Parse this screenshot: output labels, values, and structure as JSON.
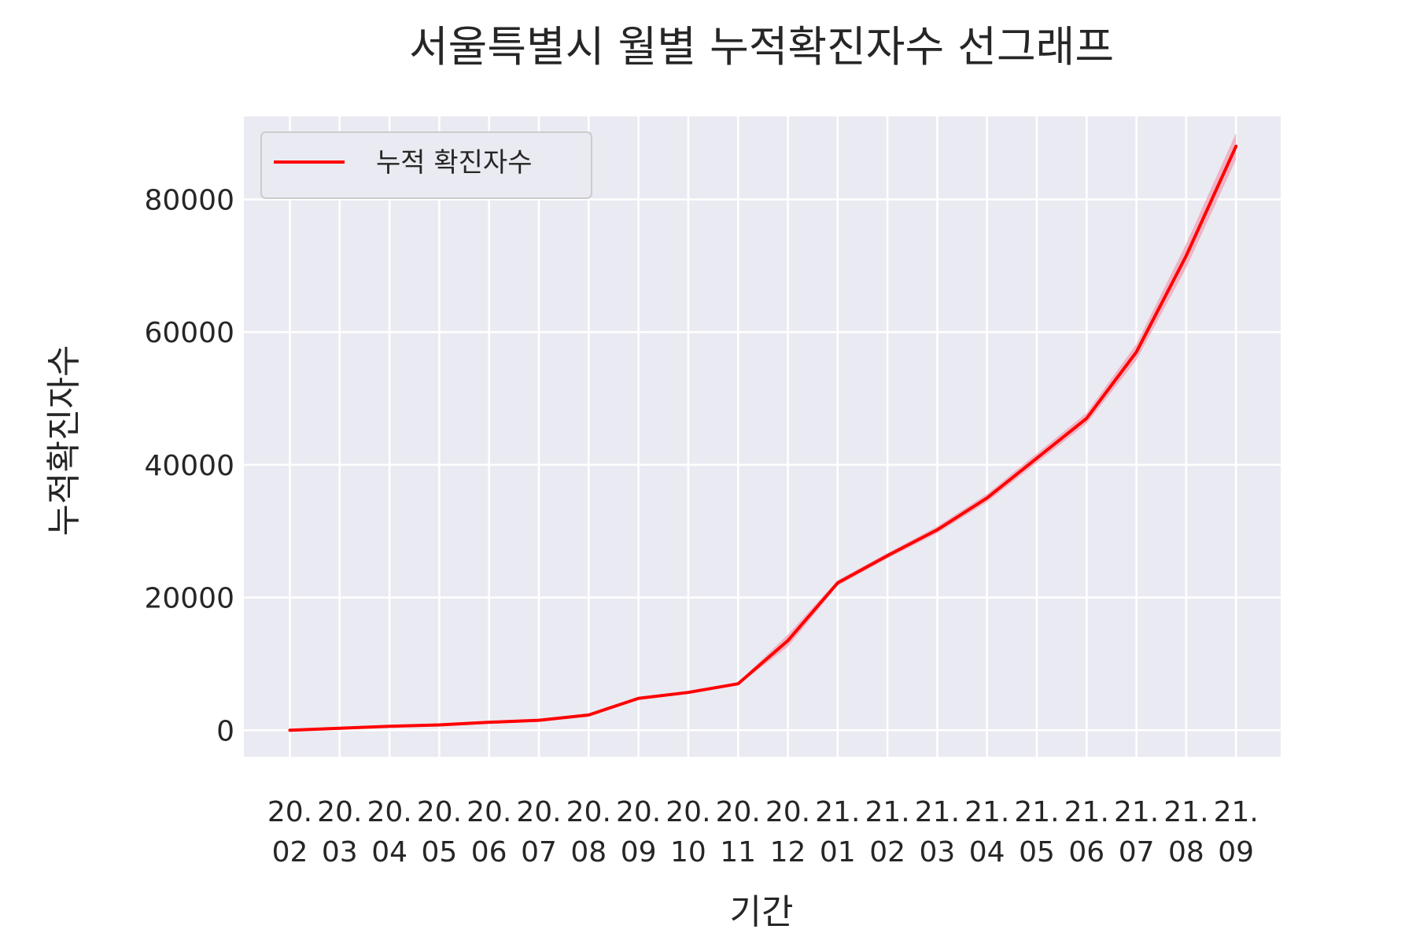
{
  "chart_data": {
    "type": "line",
    "title": "서울특별시 월별 누적확진자수 선그래프",
    "xlabel": "기간",
    "ylabel": "누적확진자수",
    "categories": [
      "2020.02",
      "2020.03",
      "2020.04",
      "2020.05",
      "2020.06",
      "2020.07",
      "2020.08",
      "2020.09",
      "2020.10",
      "2020.11",
      "2020.12",
      "2021.01",
      "2021.02",
      "2021.03",
      "2021.04",
      "2021.05",
      "2021.06",
      "2021.07",
      "2021.08",
      "2021.09"
    ],
    "x_tick_top": [
      "20.",
      "20.",
      "20.",
      "20.",
      "20.",
      "20.",
      "20.",
      "20.",
      "20.",
      "20.",
      "20.",
      "21.",
      "21.",
      "21.",
      "21.",
      "21.",
      "21.",
      "21.",
      "21.",
      "21."
    ],
    "x_tick_bottom": [
      "02",
      "03",
      "04",
      "05",
      "06",
      "07",
      "08",
      "09",
      "10",
      "11",
      "12",
      "01",
      "02",
      "03",
      "04",
      "05",
      "06",
      "07",
      "08",
      "09"
    ],
    "series": [
      {
        "name": "누적 확진자수",
        "values": [
          0,
          300,
          600,
          800,
          1200,
          1500,
          2300,
          4800,
          5700,
          7000,
          13500,
          22200,
          26300,
          30200,
          35000,
          41000,
          47000,
          57000,
          71500,
          88000
        ],
        "band": [
          150,
          150,
          150,
          150,
          150,
          150,
          150,
          150,
          150,
          200,
          900,
          400,
          400,
          500,
          600,
          700,
          800,
          1200,
          1800,
          2000
        ]
      }
    ],
    "yticks": [
      0,
      20000,
      40000,
      60000,
      80000
    ],
    "ylim": [
      -4000,
      92500
    ],
    "grid": true,
    "legend": "top-left",
    "colors": {
      "line": "#ff0000",
      "band": "#f0a0b4",
      "plot_bg": "#eaeaf2",
      "grid": "#ffffff",
      "text": "#262626"
    }
  }
}
